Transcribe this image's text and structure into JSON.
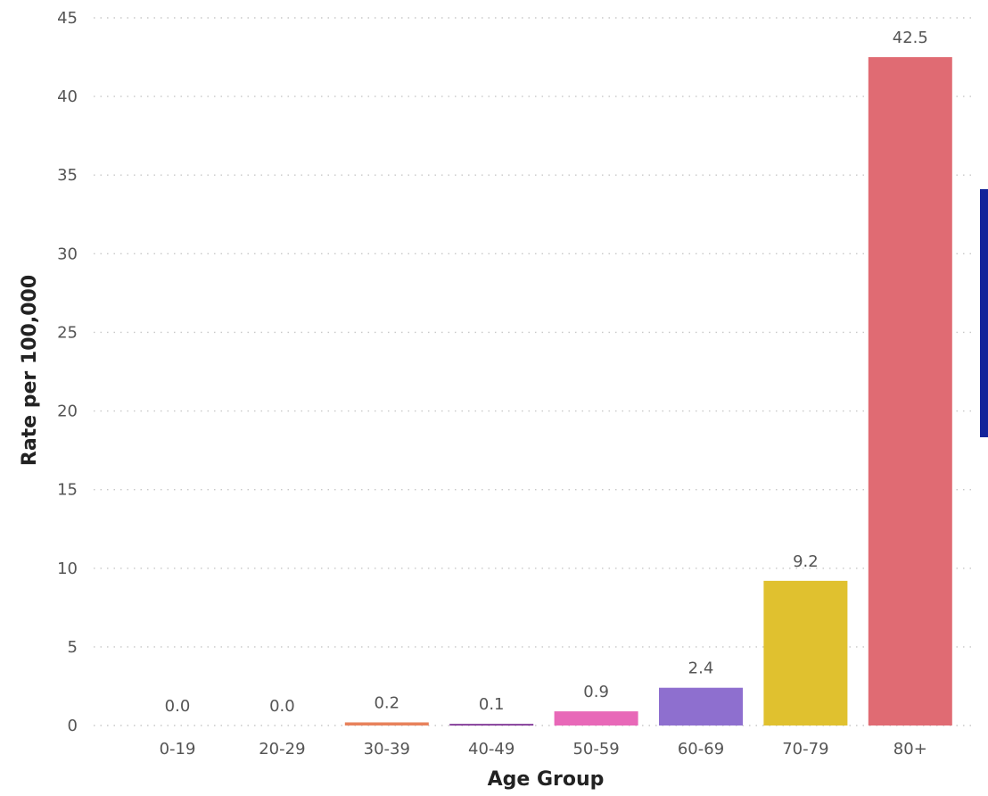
{
  "chart_data": {
    "type": "bar",
    "title": "",
    "xlabel": "Age Group",
    "ylabel": "Rate per 100,000",
    "categories": [
      "0-19",
      "20-29",
      "30-39",
      "40-49",
      "50-59",
      "60-69",
      "70-79",
      "80+"
    ],
    "values": [
      0.0,
      0.0,
      0.2,
      0.1,
      0.9,
      2.4,
      9.2,
      42.5
    ],
    "value_labels": [
      "0.0",
      "0.0",
      "0.2",
      "0.1",
      "0.9",
      "2.4",
      "9.2",
      "42.5"
    ],
    "colors": [
      "#3366cc",
      "#1fa39a",
      "#e8825c",
      "#7b2e93",
      "#e868b8",
      "#8e6fcf",
      "#e0c12f",
      "#e06b73"
    ],
    "ylim": [
      0,
      45
    ],
    "yticks": [
      0,
      5,
      10,
      15,
      20,
      25,
      30,
      35,
      40,
      45
    ],
    "ytick_labels": [
      "0",
      "5",
      "10",
      "15",
      "20",
      "25",
      "30",
      "35",
      "40",
      "45"
    ],
    "grid": true,
    "legend": "none"
  },
  "decor": {
    "side_panel_color": "#13249a"
  }
}
